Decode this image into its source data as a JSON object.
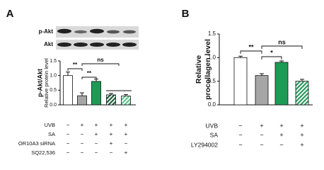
{
  "chart_data": [
    {
      "type": "bar",
      "panel_label": "A",
      "blot_labels": [
        "p-Akt",
        "Akt"
      ],
      "ylabel": "p-Akt/Akt",
      "ylabel2": "Relative protein level",
      "values": [
        1.0,
        0.31,
        0.8,
        0.34,
        0.3
      ],
      "errors": [
        0.12,
        0.1,
        0.08,
        0.05,
        0.05
      ],
      "colors": [
        "#ffffff",
        "#a6a6a6",
        "#1f9a55",
        "#ffffff",
        "#ffffff"
      ],
      "hatch": [
        null,
        null,
        null,
        "#1b5a38",
        "#5cc48b"
      ],
      "ylim": [
        0,
        1.5
      ],
      "yticks": [
        {
          "value": 0,
          "label": "0.0"
        },
        {
          "value": 0.5,
          "label": "0.5"
        },
        {
          "value": 1,
          "label": "1.0"
        },
        {
          "value": 1.5,
          "label": "1.5"
        }
      ],
      "annotations": [
        "**",
        "**",
        "ns"
      ],
      "treatments": [
        {
          "label": "UVB",
          "signs": [
            "−",
            "+",
            "+",
            "+",
            "+"
          ]
        },
        {
          "label": "SA",
          "signs": [
            "−",
            "−",
            "+",
            "+",
            "+"
          ]
        },
        {
          "label": "OR10A3 siRNA",
          "signs": [
            "−",
            "−",
            "−",
            "+",
            "−"
          ]
        },
        {
          "label": "SQ22,536",
          "signs": [
            "−",
            "−",
            "−",
            "−",
            "+"
          ]
        }
      ]
    },
    {
      "type": "bar",
      "panel_label": "B",
      "ylabel": "Relative",
      "ylabel2": "procollagen level",
      "values": [
        1.0,
        0.62,
        0.9,
        0.5
      ],
      "errors": [
        0.03,
        0.04,
        0.03,
        0.04
      ],
      "colors": [
        "#ffffff",
        "#a6a6a6",
        "#1f9a55",
        "#ffffff"
      ],
      "hatch": [
        null,
        null,
        null,
        "#2a9a5e"
      ],
      "ylim": [
        0,
        1.5
      ],
      "yticks": [
        {
          "value": 0,
          "label": "0.0"
        },
        {
          "value": 0.5,
          "label": "0.5"
        },
        {
          "value": 1,
          "label": "1.0"
        },
        {
          "value": 1.5,
          "label": "1.5"
        }
      ],
      "annotations": [
        "**",
        "*",
        "ns"
      ],
      "treatments": [
        {
          "label": "UVB",
          "signs": [
            "−",
            "+",
            "+",
            "+"
          ]
        },
        {
          "label": "SA",
          "signs": [
            "−",
            "−",
            "+",
            "+"
          ]
        },
        {
          "label": "LY294002",
          "signs": [
            "−",
            "−",
            "−",
            "+"
          ]
        }
      ]
    }
  ]
}
